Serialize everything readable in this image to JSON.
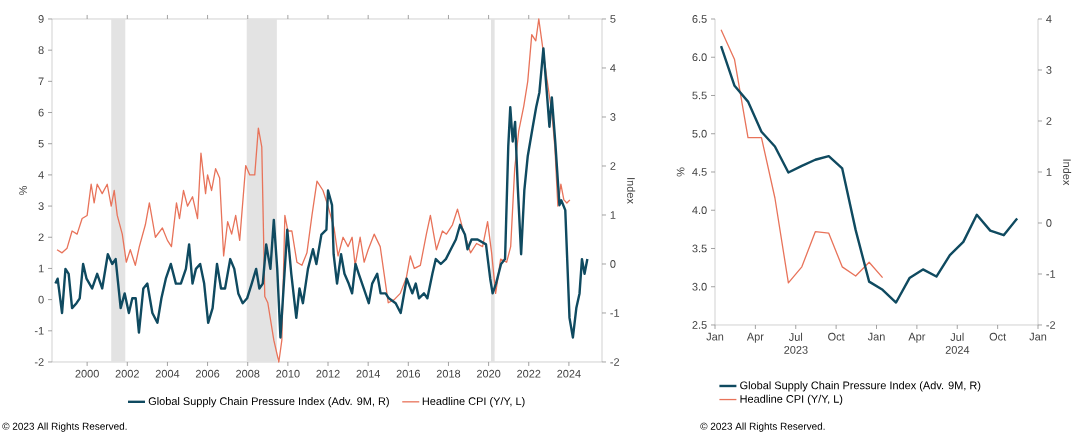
{
  "chart_data": [
    {
      "type": "line",
      "ylabel": "%",
      "y2label": "Index",
      "legend": "bottom",
      "xlim": [
        1998.25,
        2025.65
      ],
      "xticks": [
        2000,
        2002,
        2004,
        2006,
        2008,
        2010,
        2012,
        2014,
        2016,
        2018,
        2020,
        2022,
        2024
      ],
      "ylim": [
        -2,
        9
      ],
      "yticks": [
        -2,
        -1,
        0,
        1,
        2,
        3,
        4,
        5,
        6,
        7,
        8,
        9
      ],
      "y2lim": [
        -2,
        5
      ],
      "y2ticks": [
        -2,
        -1,
        0,
        1,
        2,
        3,
        4,
        5
      ],
      "bands": [
        {
          "axis": "x",
          "from": 2001.2,
          "to": 2001.9,
          "color": "#e3e3e3"
        },
        {
          "axis": "x",
          "from": 2007.95,
          "to": 2009.45,
          "color": "#e3e3e3"
        },
        {
          "axis": "x",
          "from": 2020.12,
          "to": 2020.3,
          "color": "#e3e3e3"
        }
      ],
      "annotations": [
        "© 2023 All Rights Reserved."
      ],
      "series": [
        {
          "name": "Global Supply Chain Pressure Index (Adv. 9M, R)",
          "color": "#0f4a60",
          "axis": "y2",
          "x": [
            1998.42,
            1998.53,
            1998.75,
            1998.92,
            1999.08,
            1999.25,
            1999.47,
            1999.63,
            1999.8,
            1999.97,
            2000.25,
            2000.5,
            2000.75,
            2001.03,
            2001.25,
            2001.42,
            2001.67,
            2001.87,
            2002.08,
            2002.25,
            2002.42,
            2002.58,
            2002.8,
            2003.0,
            2003.25,
            2003.5,
            2003.7,
            2003.92,
            2004.17,
            2004.42,
            2004.67,
            2004.92,
            2005.08,
            2005.25,
            2005.42,
            2005.63,
            2005.83,
            2006.03,
            2006.25,
            2006.47,
            2006.67,
            2006.87,
            2007.13,
            2007.33,
            2007.53,
            2007.75,
            2007.97,
            2008.2,
            2008.42,
            2008.58,
            2008.75,
            2008.92,
            2009.13,
            2009.3,
            2009.47,
            2009.63,
            2009.8,
            2009.97,
            2010.17,
            2010.42,
            2010.58,
            2010.75,
            2011.0,
            2011.25,
            2011.42,
            2011.67,
            2011.92,
            2012.0,
            2012.2,
            2012.28,
            2012.45,
            2012.65,
            2012.82,
            2013.03,
            2013.2,
            2013.37,
            2013.53,
            2013.78,
            2014.03,
            2014.2,
            2014.45,
            2014.62,
            2014.87,
            2015.03,
            2015.37,
            2015.62,
            2015.92,
            2016.2,
            2016.37,
            2016.53,
            2016.78,
            2016.95,
            2017.2,
            2017.37,
            2017.62,
            2017.87,
            2018.12,
            2018.37,
            2018.58,
            2018.82,
            2018.95,
            2019.15,
            2019.45,
            2019.87,
            2020.08,
            2020.2,
            2020.37,
            2020.62,
            2020.82,
            2020.98,
            2021.08,
            2021.2,
            2021.32,
            2021.45,
            2021.62,
            2021.78,
            2021.95,
            2022.2,
            2022.37,
            2022.53,
            2022.73,
            2022.92,
            2023.03,
            2023.15,
            2023.32,
            2023.53,
            2023.62,
            2023.82,
            2024.03,
            2024.2,
            2024.37,
            2024.53,
            2024.65,
            2024.78,
            2024.92
          ],
          "values": [
            -0.4,
            -0.3,
            -1.0,
            -0.1,
            -0.2,
            -0.9,
            -0.8,
            -0.7,
            0.0,
            -0.3,
            -0.5,
            -0.2,
            -0.5,
            0.2,
            0.0,
            0.1,
            -0.9,
            -0.6,
            -1.0,
            -0.7,
            -0.7,
            -1.4,
            -0.5,
            -0.4,
            -1.0,
            -1.2,
            -0.7,
            -0.3,
            0.0,
            -0.4,
            -0.4,
            -0.1,
            0.4,
            -0.4,
            -0.1,
            0.0,
            -0.4,
            -1.2,
            -0.9,
            0.0,
            -0.5,
            -0.5,
            0.1,
            -0.1,
            -0.6,
            -0.8,
            -0.7,
            -0.4,
            -0.1,
            -0.5,
            -0.4,
            0.4,
            -0.1,
            0.9,
            -0.1,
            -1.5,
            -0.4,
            0.7,
            -0.2,
            -1.1,
            -0.5,
            -0.8,
            -0.1,
            0.3,
            0.0,
            0.6,
            0.7,
            1.5,
            1.2,
            0.2,
            -0.4,
            0.2,
            -0.2,
            -0.4,
            -0.6,
            0.0,
            -0.2,
            -0.5,
            -0.8,
            -0.4,
            -0.2,
            -0.6,
            -0.6,
            -0.7,
            -0.8,
            -1.0,
            -0.3,
            -0.6,
            -0.4,
            -0.7,
            -0.6,
            -0.7,
            -0.2,
            0.1,
            0.0,
            0.1,
            0.3,
            0.5,
            0.8,
            0.6,
            0.3,
            0.5,
            0.5,
            0.4,
            -0.3,
            -0.6,
            -0.4,
            0.0,
            0.1,
            2.4,
            3.2,
            2.5,
            2.9,
            1.6,
            0.2,
            1.5,
            2.2,
            2.8,
            3.2,
            3.5,
            4.4,
            3.4,
            2.8,
            3.4,
            2.5,
            1.2,
            1.3,
            1.1,
            -1.1,
            -1.5,
            -0.9,
            -0.6,
            0.1,
            -0.2,
            0.1
          ]
        },
        {
          "name": "Headline CPI (Y/Y, L)",
          "color": "#e8735a",
          "axis": "y",
          "x": [
            1998.5,
            1998.75,
            1999.0,
            1999.25,
            1999.5,
            1999.75,
            2000.0,
            2000.2,
            2000.35,
            2000.5,
            2000.75,
            2001.0,
            2001.2,
            2001.35,
            2001.5,
            2001.75,
            2001.95,
            2002.15,
            2002.4,
            2002.6,
            2002.9,
            2003.1,
            2003.4,
            2003.75,
            2004.0,
            2004.2,
            2004.45,
            2004.6,
            2004.8,
            2005.0,
            2005.25,
            2005.5,
            2005.67,
            2005.9,
            2006.0,
            2006.2,
            2006.4,
            2006.6,
            2006.8,
            2007.0,
            2007.2,
            2007.4,
            2007.6,
            2007.9,
            2008.1,
            2008.35,
            2008.53,
            2008.7,
            2008.85,
            2009.0,
            2009.3,
            2009.55,
            2009.7,
            2009.85,
            2010.0,
            2010.2,
            2010.45,
            2010.7,
            2010.95,
            2011.2,
            2011.45,
            2011.75,
            2012.0,
            2012.3,
            2012.5,
            2012.75,
            2013.0,
            2013.2,
            2013.35,
            2013.6,
            2013.8,
            2014.0,
            2014.3,
            2014.6,
            2014.8,
            2015.0,
            2015.3,
            2015.6,
            2015.9,
            2016.1,
            2016.3,
            2016.6,
            2016.9,
            2017.1,
            2017.4,
            2017.7,
            2017.9,
            2018.2,
            2018.45,
            2018.7,
            2018.9,
            2019.1,
            2019.4,
            2019.7,
            2019.95,
            2020.15,
            2020.35,
            2020.6,
            2020.9,
            2021.1,
            2021.3,
            2021.5,
            2021.75,
            2021.95,
            2022.15,
            2022.35,
            2022.5,
            2022.65,
            2022.9,
            2023.15,
            2023.3,
            2023.45,
            2023.6,
            2023.75,
            2023.9,
            2024.05
          ],
          "values": [
            1.6,
            1.5,
            1.65,
            2.2,
            2.1,
            2.6,
            2.7,
            3.7,
            3.1,
            3.7,
            3.4,
            3.7,
            3.0,
            3.5,
            2.7,
            2.1,
            1.2,
            1.6,
            1.1,
            1.7,
            2.4,
            3.1,
            2.0,
            2.3,
            1.9,
            1.7,
            3.1,
            2.6,
            3.5,
            3.0,
            3.3,
            2.6,
            4.7,
            3.4,
            4.0,
            3.5,
            4.2,
            3.9,
            1.4,
            2.5,
            2.1,
            2.7,
            1.9,
            4.3,
            4.0,
            4.0,
            5.5,
            4.9,
            0.1,
            -0.1,
            -1.3,
            -2.0,
            -1.3,
            2.7,
            2.2,
            2.2,
            1.2,
            1.1,
            1.5,
            2.7,
            3.8,
            3.5,
            3.0,
            2.3,
            1.4,
            2.0,
            1.7,
            2.0,
            1.1,
            2.0,
            1.2,
            1.6,
            2.1,
            1.7,
            0.8,
            -0.1,
            0.0,
            0.2,
            0.7,
            1.4,
            1.0,
            1.1,
            2.1,
            2.7,
            1.6,
            2.2,
            2.1,
            2.4,
            2.9,
            2.3,
            1.9,
            1.5,
            1.8,
            1.7,
            2.5,
            1.5,
            0.2,
            1.3,
            1.2,
            1.7,
            4.2,
            5.4,
            6.2,
            7.0,
            8.5,
            8.3,
            9.0,
            8.3,
            7.1,
            6.0,
            4.9,
            3.0,
            3.7,
            3.2,
            3.1,
            3.2
          ]
        }
      ]
    },
    {
      "type": "line",
      "ylabel": "%",
      "y2label": "Index",
      "legend": "bottom",
      "xlim": [
        "2023-01-01",
        "2025-01-01"
      ],
      "xticks": [
        {
          "value": "2023-01-01",
          "label": "Jan"
        },
        {
          "value": "2023-04-01",
          "label": "Apr"
        },
        {
          "value": "2023-07-01",
          "label": "Jul 2023"
        },
        {
          "value": "2023-10-01",
          "label": "Oct"
        },
        {
          "value": "2024-01-01",
          "label": "Jan"
        },
        {
          "value": "2024-04-01",
          "label": "Apr"
        },
        {
          "value": "2024-07-01",
          "label": "Jul 2024"
        },
        {
          "value": "2024-10-01",
          "label": "Oct"
        },
        {
          "value": "2025-01-01",
          "label": "Jan"
        }
      ],
      "ylim": [
        2.5,
        6.5
      ],
      "yticks": [
        2.5,
        {
          "value": 3,
          "label": "3.0"
        },
        3.5,
        {
          "value": 4,
          "label": "4.0"
        },
        4.5,
        {
          "value": 5,
          "label": "5.0"
        },
        5.5,
        {
          "value": 6,
          "label": "6.0"
        },
        6.5
      ],
      "y2lim": [
        -2,
        4
      ],
      "y2ticks": [
        -2,
        -1,
        0,
        1,
        2,
        3,
        4
      ],
      "annotations": [
        "© 2023 All Rights Reserved."
      ],
      "series": [
        {
          "name": "Global Supply Chain Pressure Index (Adv. 9M, R)",
          "color": "#0f4a60",
          "axis": "y2",
          "x": [
            "2023-01-15",
            "2023-02-15",
            "2023-03-15",
            "2023-04-15",
            "2023-05-15",
            "2023-06-15",
            "2023-07-15",
            "2023-08-15",
            "2023-09-15",
            "2023-10-15",
            "2023-11-15",
            "2023-12-15",
            "2024-01-15",
            "2024-02-15",
            "2024-03-15",
            "2024-04-15",
            "2024-05-15",
            "2024-06-15",
            "2024-07-15",
            "2024-08-15",
            "2024-09-15",
            "2024-10-15",
            "2024-11-15"
          ],
          "values": [
            3.47,
            2.69,
            2.38,
            1.79,
            1.5,
            0.99,
            1.12,
            1.24,
            1.31,
            1.07,
            -0.14,
            -1.15,
            -1.31,
            -1.56,
            -1.08,
            -0.91,
            -1.05,
            -0.63,
            -0.37,
            0.16,
            -0.15,
            -0.24,
            0.09
          ]
        },
        {
          "name": "Headline CPI (Y/Y, L)",
          "color": "#e8735a",
          "axis": "y",
          "x": [
            "2023-01-15",
            "2023-02-15",
            "2023-03-15",
            "2023-04-15",
            "2023-05-15",
            "2023-06-15",
            "2023-07-15",
            "2023-08-15",
            "2023-09-15",
            "2023-10-15",
            "2023-11-15",
            "2023-12-15",
            "2024-01-15"
          ],
          "values": [
            6.36,
            5.97,
            4.95,
            4.95,
            4.16,
            3.05,
            3.26,
            3.72,
            3.7,
            3.26,
            3.14,
            3.32,
            3.12
          ]
        }
      ]
    }
  ]
}
